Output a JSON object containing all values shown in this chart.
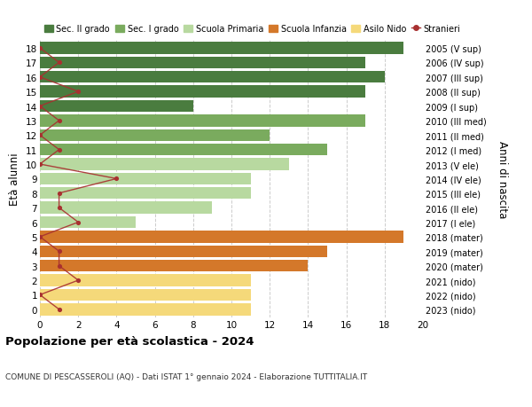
{
  "ages": [
    18,
    17,
    16,
    15,
    14,
    13,
    12,
    11,
    10,
    9,
    8,
    7,
    6,
    5,
    4,
    3,
    2,
    1,
    0
  ],
  "bar_values": [
    19,
    17,
    18,
    17,
    8,
    17,
    12,
    15,
    13,
    11,
    11,
    9,
    5,
    19,
    15,
    14,
    11,
    11,
    11
  ],
  "bar_colors": [
    "#4a7c3f",
    "#4a7c3f",
    "#4a7c3f",
    "#4a7c3f",
    "#4a7c3f",
    "#7aab5e",
    "#7aab5e",
    "#7aab5e",
    "#b8d9a0",
    "#b8d9a0",
    "#b8d9a0",
    "#b8d9a0",
    "#b8d9a0",
    "#d4782a",
    "#d4782a",
    "#d4782a",
    "#f5d97a",
    "#f5d97a",
    "#f5d97a"
  ],
  "stranieri_values": [
    0,
    1,
    0,
    2,
    0,
    1,
    0,
    1,
    0,
    4,
    1,
    1,
    2,
    0,
    1,
    1,
    2,
    0,
    1
  ],
  "right_labels": [
    "2005 (V sup)",
    "2006 (IV sup)",
    "2007 (III sup)",
    "2008 (II sup)",
    "2009 (I sup)",
    "2010 (III med)",
    "2011 (II med)",
    "2012 (I med)",
    "2013 (V ele)",
    "2014 (IV ele)",
    "2015 (III ele)",
    "2016 (II ele)",
    "2017 (I ele)",
    "2018 (mater)",
    "2019 (mater)",
    "2020 (mater)",
    "2021 (nido)",
    "2022 (nido)",
    "2023 (nido)"
  ],
  "legend_labels": [
    "Sec. II grado",
    "Sec. I grado",
    "Scuola Primaria",
    "Scuola Infanzia",
    "Asilo Nido",
    "Stranieri"
  ],
  "legend_colors": [
    "#4a7c3f",
    "#7aab5e",
    "#b8d9a0",
    "#d4782a",
    "#f5d97a",
    "#a83030"
  ],
  "ylabel_left": "Età alunni",
  "ylabel_right": "Anni di nascita",
  "xlim": [
    0,
    20
  ],
  "xticks": [
    0,
    2,
    4,
    6,
    8,
    10,
    12,
    14,
    16,
    18,
    20
  ],
  "title": "Popolazione per età scolastica - 2024",
  "subtitle": "COMUNE DI PESCASSEROLI (AQ) - Dati ISTAT 1° gennaio 2024 - Elaborazione TUTTITALIA.IT",
  "stranieri_color": "#a83030",
  "grid_color": "#cccccc",
  "bar_height": 0.82
}
